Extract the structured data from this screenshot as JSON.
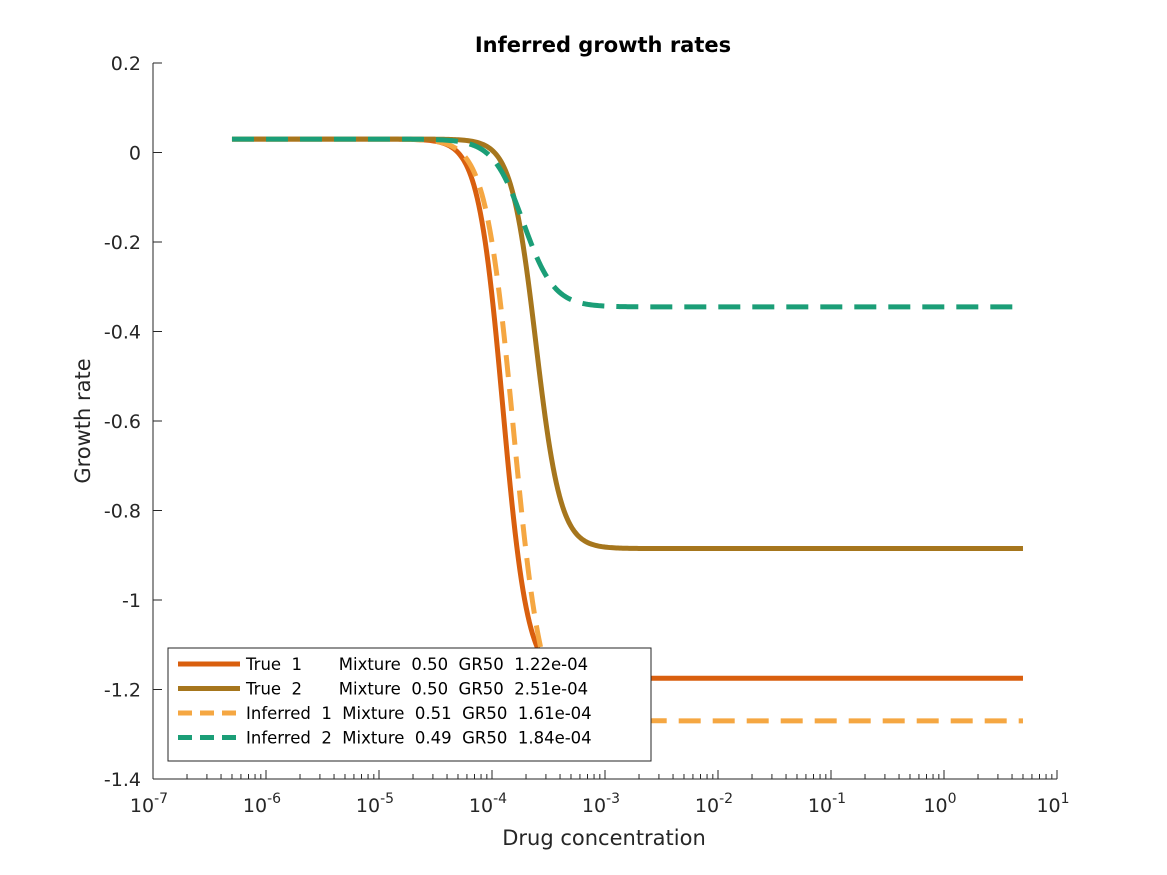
{
  "chart_data": {
    "type": "line",
    "title": "Inferred growth rates",
    "xlabel": "Drug concentration",
    "ylabel": "Growth rate",
    "xscale": "log",
    "xlim": [
      1e-07,
      10
    ],
    "ylim": [
      -1.4,
      0.2
    ],
    "grid": false,
    "legend_position": "bottom-left",
    "x_ticks": [
      {
        "value": 1e-07,
        "base": "10",
        "exp": "-7"
      },
      {
        "value": 1e-06,
        "base": "10",
        "exp": "-6"
      },
      {
        "value": 1e-05,
        "base": "10",
        "exp": "-5"
      },
      {
        "value": 0.0001,
        "base": "10",
        "exp": "-4"
      },
      {
        "value": 0.001,
        "base": "10",
        "exp": "-3"
      },
      {
        "value": 0.01,
        "base": "10",
        "exp": "-2"
      },
      {
        "value": 0.1,
        "base": "10",
        "exp": "-1"
      },
      {
        "value": 1,
        "base": "10",
        "exp": "0"
      },
      {
        "value": 10,
        "base": "10",
        "exp": "1"
      }
    ],
    "y_ticks": [
      {
        "value": 0.2,
        "label": "0.2"
      },
      {
        "value": 0,
        "label": "0"
      },
      {
        "value": -0.2,
        "label": "-0.2"
      },
      {
        "value": -0.4,
        "label": "-0.4"
      },
      {
        "value": -0.6,
        "label": "-0.6"
      },
      {
        "value": -0.8,
        "label": "-0.8"
      },
      {
        "value": -1,
        "label": "-1"
      },
      {
        "value": -1.2,
        "label": "-1.2"
      },
      {
        "value": -1.4,
        "label": "-1.4"
      }
    ],
    "x_range": [
      5e-07,
      5
    ],
    "series": [
      {
        "name": "True  1       Mixture  0.50  GR50  1.22e-04",
        "color": "#d95f0e",
        "style": "solid",
        "top": 0.03,
        "bottom": -1.175,
        "ec50": 0.000125,
        "hill": 4.0
      },
      {
        "name": "True  2       Mixture  0.50  GR50  2.51e-04",
        "color": "#a6761d",
        "style": "solid",
        "top": 0.03,
        "bottom": -0.885,
        "ec50": 0.000245,
        "hill": 4.0
      },
      {
        "name": "Inferred  1  Mixture  0.51  GR50  1.61e-04",
        "color": "#f5a742",
        "style": "dashed",
        "top": 0.03,
        "bottom": -1.27,
        "ec50": 0.000155,
        "hill": 3.5
      },
      {
        "name": "Inferred  2  Mixture  0.49  GR50  1.84e-04",
        "color": "#1b9e77",
        "style": "dashed",
        "top": 0.03,
        "bottom": -0.345,
        "ec50": 0.00019,
        "hill": 3.2
      }
    ]
  }
}
